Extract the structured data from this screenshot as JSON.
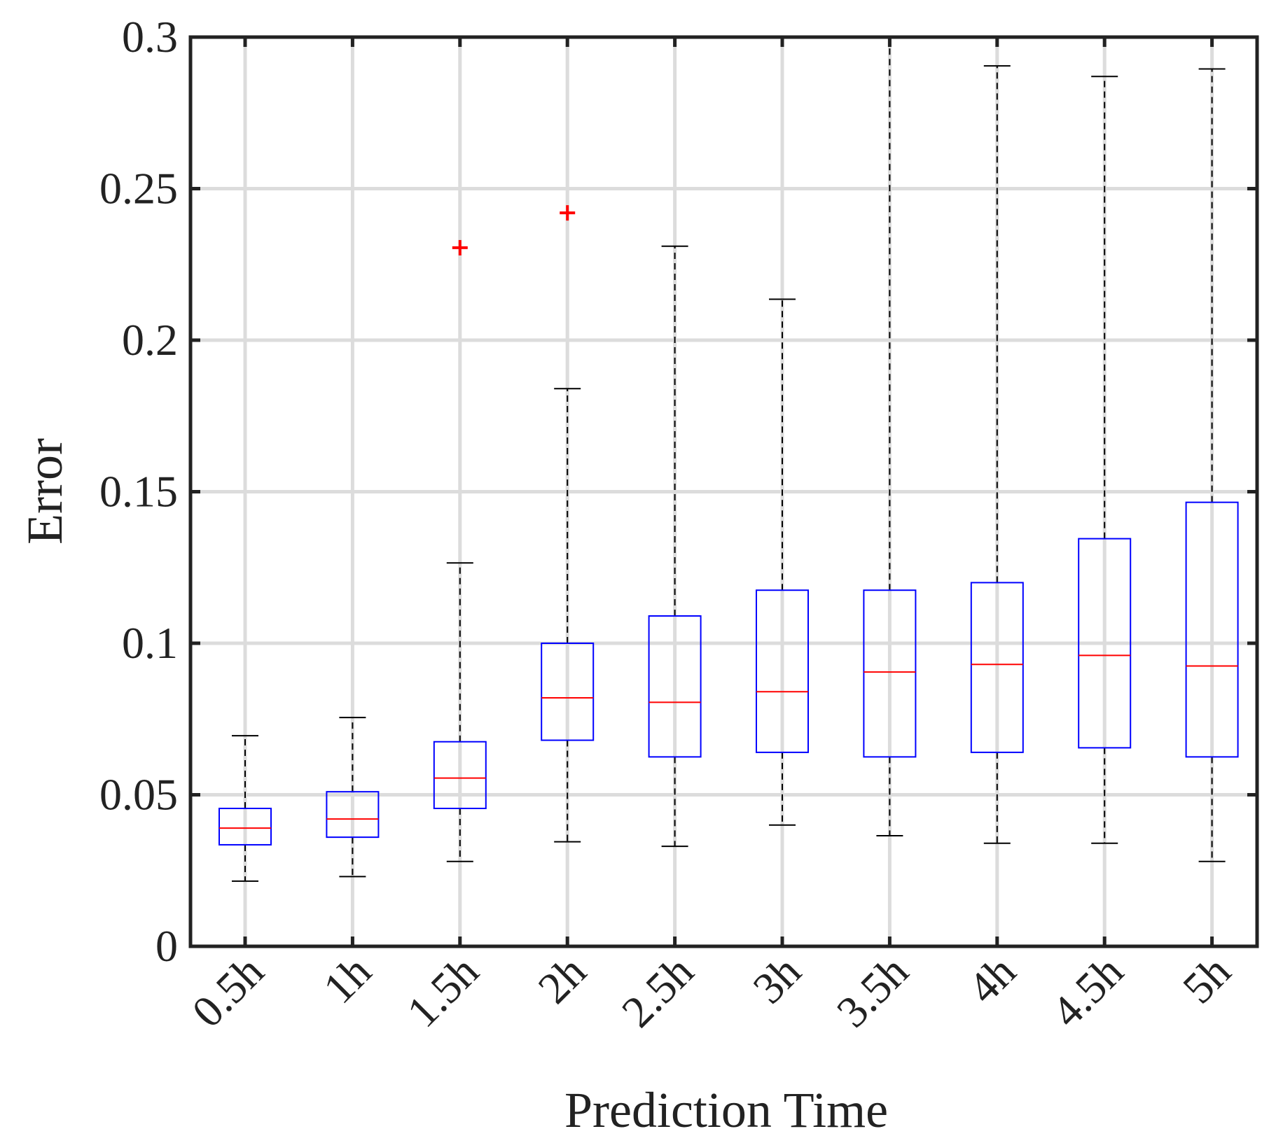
{
  "chart_data": {
    "type": "boxplot",
    "xlabel": "Prediction Time",
    "ylabel": "Error",
    "ylim": [
      0,
      0.3
    ],
    "yticks": [
      0,
      0.05,
      0.1,
      0.15,
      0.2,
      0.25,
      0.3
    ],
    "ytick_labels": [
      "0",
      "0.05",
      "0.1",
      "0.15",
      "0.2",
      "0.25",
      "0.3"
    ],
    "categories": [
      "0.5h",
      "1h",
      "1.5h",
      "2h",
      "2.5h",
      "3h",
      "3.5h",
      "4h",
      "4.5h",
      "5h"
    ],
    "grid": true,
    "colors": {
      "box": "#0000ff",
      "median": "#ff0000",
      "outlier": "#ff0000",
      "whisker": "#000000",
      "grid": "#dcdcdc",
      "axes": "#222222"
    },
    "boxes": [
      {
        "category": "0.5h",
        "whisker_low": 0.0215,
        "q1": 0.0335,
        "median": 0.039,
        "q3": 0.0455,
        "whisker_high": 0.0695,
        "outliers": []
      },
      {
        "category": "1h",
        "whisker_low": 0.023,
        "q1": 0.036,
        "median": 0.042,
        "q3": 0.051,
        "whisker_high": 0.0755,
        "outliers": []
      },
      {
        "category": "1.5h",
        "whisker_low": 0.028,
        "q1": 0.0455,
        "median": 0.0555,
        "q3": 0.0675,
        "whisker_high": 0.1265,
        "outliers": [
          0.2305
        ]
      },
      {
        "category": "2h",
        "whisker_low": 0.0345,
        "q1": 0.068,
        "median": 0.082,
        "q3": 0.1,
        "whisker_high": 0.184,
        "outliers": [
          0.242
        ]
      },
      {
        "category": "2.5h",
        "whisker_low": 0.033,
        "q1": 0.0625,
        "median": 0.0805,
        "q3": 0.109,
        "whisker_high": 0.231,
        "outliers": []
      },
      {
        "category": "3h",
        "whisker_low": 0.04,
        "q1": 0.064,
        "median": 0.084,
        "q3": 0.1175,
        "whisker_high": 0.2135,
        "outliers": []
      },
      {
        "category": "3.5h",
        "whisker_low": 0.0365,
        "q1": 0.0625,
        "median": 0.0905,
        "q3": 0.1175,
        "whisker_high": 0.3,
        "outliers": []
      },
      {
        "category": "4h",
        "whisker_low": 0.034,
        "q1": 0.064,
        "median": 0.093,
        "q3": 0.12,
        "whisker_high": 0.2905,
        "outliers": []
      },
      {
        "category": "4.5h",
        "whisker_low": 0.034,
        "q1": 0.0655,
        "median": 0.096,
        "q3": 0.1345,
        "whisker_high": 0.287,
        "outliers": []
      },
      {
        "category": "5h",
        "whisker_low": 0.028,
        "q1": 0.0625,
        "median": 0.0925,
        "q3": 0.1465,
        "whisker_high": 0.2895,
        "outliers": []
      }
    ]
  }
}
